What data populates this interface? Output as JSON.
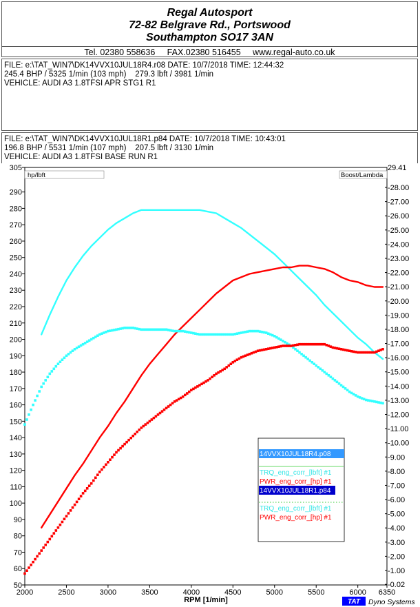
{
  "header": {
    "company": "Regal Autosport",
    "address1": "72-82 Belgrave Rd., Portswood",
    "address2": "Southampton SO17 3AN",
    "contact": "Tel. 02380 558636     FAX.02380 516455     www.regal-auto.co.uk"
  },
  "run1": {
    "file_line": "FILE: e:\\TAT_WIN7\\DK14VVX10JUL18R4.r08  DATE: 10/7/2018  TIME: 12:44:32",
    "power_line": "245.4 BHP / 5325 1/min (103 mph)    279.3 lbft / 3981 1/min",
    "vehicle_line": "VEHICLE: AUDI A3 1.8TFSI APR STG1 R1"
  },
  "run2": {
    "file_line": "FILE: e:\\TAT_WIN7\\DK14VVX10JUL18R1.p84  DATE: 10/7/2018  TIME: 10:43:01",
    "power_line": "196.8 BHP / 5531 1/min (107 mph)    207.5 lbft / 3130 1/min",
    "vehicle_line": "VEHICLE: AUDI A3 1.8TFSI BASE RUN R1"
  },
  "brand": {
    "logo_text": "TAT",
    "name": "Dyno Systems"
  },
  "chart_data": {
    "type": "line",
    "xlabel": "RPM  [1/min]",
    "ylabel_left": "hp/lbft",
    "ylabel_right": "Boost/Lambda",
    "xlim": [
      2000,
      6350
    ],
    "ylim_left": [
      50,
      305
    ],
    "ylim_right": [
      -0.02,
      29.41
    ],
    "x_ticks": [
      2000,
      2500,
      3000,
      3500,
      4000,
      4500,
      5000,
      5500,
      6000,
      6350
    ],
    "y_left_ticks": [
      50,
      60,
      70,
      80,
      90,
      100,
      110,
      120,
      130,
      140,
      150,
      160,
      170,
      180,
      190,
      200,
      210,
      220,
      230,
      240,
      250,
      260,
      270,
      280,
      290,
      305
    ],
    "y_right_ticks": [
      "29.41",
      "-28.00",
      "-27.00",
      "-26.00",
      "-25.00",
      "-24.00",
      "-23.00",
      "-22.00",
      "-21.00",
      "-20.00",
      "-19.00",
      "-18.00",
      "-17.00",
      "-16.00",
      "-15.00",
      "-14.00",
      "-13.00",
      "-12.00",
      "-11.00",
      "-10.00",
      "-9.00",
      "-8.00",
      "-7.00",
      "-6.00",
      "-5.00",
      "-4.00",
      "-3.00",
      "-2.00",
      "-1.00",
      "-0.02"
    ],
    "grid": false,
    "legend_position": "center-right",
    "legend": [
      {
        "file": "14VVX10JUL18R4.p08",
        "bg": "#3399ff",
        "entries": [
          "TRQ_eng_corr_[lbft] #1",
          "PWR_eng_corr_[hp] #1"
        ]
      },
      {
        "file": "14VVX10JUL18R1.p84",
        "bg": "#0000cc",
        "entries": [
          "TRQ_eng_corr_[lbft] #1",
          "PWR_eng_corr_[hp] #1"
        ]
      }
    ],
    "series": [
      {
        "name": "TRQ_eng_corr_[lbft] #1",
        "run": "14VVX10JUL18R4.p08",
        "color": "#33ffff",
        "style": "solid",
        "x": [
          2200,
          2300,
          2400,
          2500,
          2600,
          2700,
          2800,
          2900,
          3000,
          3100,
          3200,
          3300,
          3400,
          3500,
          3600,
          3700,
          3800,
          3900,
          4000,
          4100,
          4200,
          4300,
          4400,
          4500,
          4600,
          4700,
          4800,
          4900,
          5000,
          5100,
          5200,
          5300,
          5400,
          5500,
          5600,
          5700,
          5800,
          5900,
          6000,
          6100,
          6200,
          6300
        ],
        "y": [
          203,
          215,
          226,
          236,
          244,
          251,
          257,
          262,
          267,
          271,
          274,
          277,
          279,
          279,
          279,
          279,
          279,
          279,
          279,
          279,
          278,
          277,
          274,
          271,
          268,
          264,
          260,
          256,
          252,
          247,
          242,
          237,
          232,
          227,
          221,
          216,
          211,
          206,
          201,
          197,
          192,
          188
        ]
      },
      {
        "name": "PWR_eng_corr_[hp] #1",
        "run": "14VVX10JUL18R4.p08",
        "color": "#ff0000",
        "style": "solid",
        "x": [
          2200,
          2300,
          2400,
          2500,
          2600,
          2700,
          2800,
          2900,
          3000,
          3100,
          3200,
          3300,
          3400,
          3500,
          3600,
          3700,
          3800,
          3900,
          4000,
          4100,
          4200,
          4300,
          4400,
          4500,
          4600,
          4700,
          4800,
          4900,
          5000,
          5100,
          5200,
          5300,
          5400,
          5500,
          5600,
          5700,
          5800,
          5900,
          6000,
          6100,
          6200,
          6300
        ],
        "y": [
          85,
          93,
          101,
          109,
          117,
          124,
          132,
          140,
          147,
          155,
          162,
          170,
          178,
          185,
          191,
          197,
          203,
          208,
          213,
          218,
          223,
          228,
          232,
          236,
          238,
          240,
          241,
          242,
          243,
          244,
          244,
          245,
          245,
          244,
          243,
          241,
          238,
          236,
          235,
          233,
          232,
          232
        ]
      },
      {
        "name": "TRQ_eng_corr_[lbft] #1",
        "run": "14VVX10JUL18R1.p84",
        "color": "#33ffff",
        "style": "dotted",
        "x": [
          2000,
          2100,
          2200,
          2300,
          2400,
          2500,
          2600,
          2700,
          2800,
          2900,
          3000,
          3100,
          3200,
          3300,
          3400,
          3500,
          3600,
          3700,
          3800,
          3900,
          4000,
          4100,
          4200,
          4300,
          4400,
          4500,
          4600,
          4700,
          4800,
          4900,
          5000,
          5100,
          5200,
          5300,
          5400,
          5500,
          5600,
          5700,
          5800,
          5900,
          6000,
          6100,
          6200,
          6300
        ],
        "y": [
          148,
          160,
          171,
          179,
          185,
          190,
          194,
          197,
          200,
          203,
          205,
          206,
          207,
          207,
          206,
          206,
          206,
          206,
          205,
          205,
          204,
          203,
          203,
          203,
          203,
          203,
          204,
          205,
          205,
          204,
          202,
          199,
          196,
          192,
          188,
          184,
          180,
          176,
          172,
          168,
          165,
          163,
          162,
          161
        ]
      },
      {
        "name": "PWR_eng_corr_[hp] #1",
        "run": "14VVX10JUL18R1.p84",
        "color": "#ff0000",
        "style": "dotted",
        "x": [
          2000,
          2100,
          2200,
          2300,
          2400,
          2500,
          2600,
          2700,
          2800,
          2900,
          3000,
          3100,
          3200,
          3300,
          3400,
          3500,
          3600,
          3700,
          3800,
          3900,
          4000,
          4100,
          4200,
          4300,
          4400,
          4500,
          4600,
          4700,
          4800,
          4900,
          5000,
          5100,
          5200,
          5300,
          5400,
          5500,
          5600,
          5700,
          5800,
          5900,
          6000,
          6100,
          6200,
          6300
        ],
        "y": [
          57,
          64,
          71,
          78,
          85,
          92,
          99,
          106,
          112,
          119,
          125,
          131,
          136,
          141,
          146,
          150,
          154,
          158,
          162,
          165,
          169,
          172,
          175,
          179,
          182,
          186,
          189,
          191,
          193,
          194,
          195,
          196,
          196,
          197,
          197,
          197,
          197,
          195,
          194,
          193,
          192,
          192,
          192,
          194
        ]
      }
    ]
  }
}
